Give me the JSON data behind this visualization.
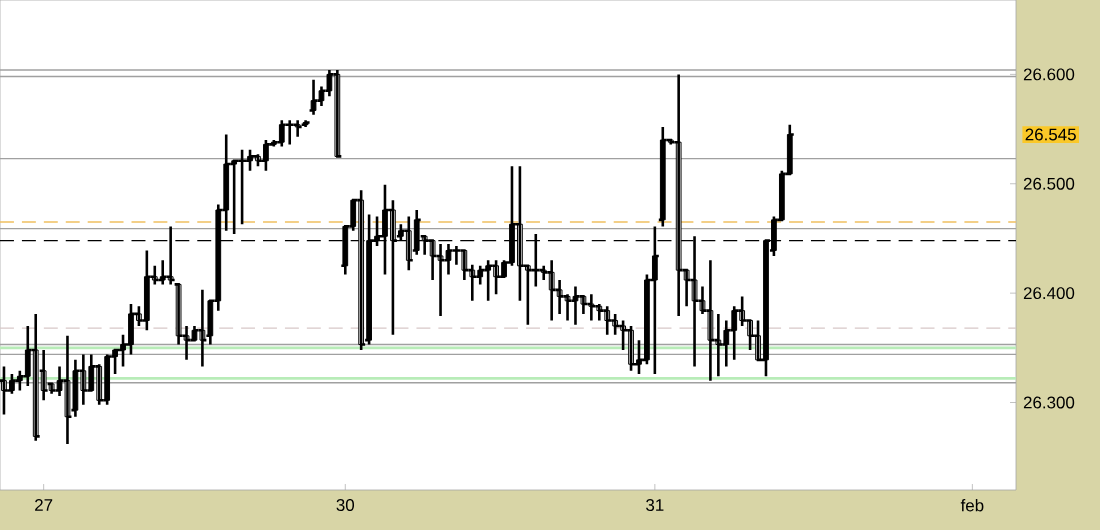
{
  "chart_data": {
    "type": "candlestick",
    "categories": [
      null,
      null,
      null,
      null,
      null,
      "27",
      null,
      null,
      null,
      null,
      null,
      null,
      null,
      null,
      null,
      null,
      null,
      null,
      null,
      null,
      null,
      null,
      null,
      null,
      null,
      null,
      null,
      null,
      null,
      null,
      null,
      null,
      null,
      null,
      null,
      null,
      null,
      null,
      null,
      null,
      null,
      null,
      null,
      "30",
      null,
      null,
      null,
      null,
      null,
      null,
      null,
      null,
      null,
      null,
      null,
      null,
      null,
      null,
      null,
      null,
      null,
      null,
      null,
      null,
      null,
      null,
      null,
      null,
      null,
      null,
      null,
      null,
      null,
      null,
      null,
      null,
      null,
      null,
      null,
      null,
      null,
      null,
      "31",
      null,
      null,
      null,
      null,
      null,
      null,
      null,
      null,
      null,
      null,
      null,
      null,
      null,
      null,
      null,
      null,
      null,
      null,
      null,
      null,
      null,
      null,
      null,
      null,
      null,
      null,
      null,
      null,
      null,
      null,
      null,
      null,
      null,
      null,
      null,
      null,
      null,
      null,
      null,
      "feb",
      null,
      null,
      null,
      null,
      null
    ],
    "ohlc": [
      [
        26.32,
        26.333,
        26.289,
        26.311
      ],
      [
        26.311,
        26.326,
        26.308,
        26.32
      ],
      [
        26.32,
        26.329,
        26.311,
        26.324
      ],
      [
        26.324,
        26.37,
        26.315,
        26.348
      ],
      [
        26.348,
        26.381,
        26.265,
        26.269
      ],
      [
        26.329,
        26.348,
        26.302,
        26.311
      ],
      [
        26.317,
        26.317,
        26.308,
        26.311
      ],
      [
        26.311,
        26.333,
        26.306,
        26.32
      ],
      [
        26.32,
        26.361,
        26.262,
        26.287
      ],
      [
        26.293,
        26.339,
        26.287,
        26.329
      ],
      [
        26.329,
        26.344,
        26.298,
        26.311
      ],
      [
        26.311,
        26.344,
        26.311,
        26.333
      ],
      [
        26.333,
        26.335,
        26.298,
        26.302
      ],
      [
        26.302,
        26.344,
        26.298,
        26.342
      ],
      [
        26.342,
        26.348,
        26.326,
        26.348
      ],
      [
        26.348,
        26.362,
        26.333,
        26.353
      ],
      [
        26.353,
        26.39,
        26.344,
        26.381
      ],
      [
        26.381,
        26.388,
        26.37,
        26.375
      ],
      [
        26.375,
        26.439,
        26.366,
        26.415
      ],
      [
        26.415,
        26.425,
        26.408,
        26.412
      ],
      [
        26.412,
        26.43,
        26.408,
        26.415
      ],
      [
        26.415,
        26.461,
        26.408,
        26.412
      ],
      [
        26.408,
        26.408,
        26.353,
        26.361
      ],
      [
        26.361,
        26.37,
        26.339,
        26.357
      ],
      [
        26.357,
        26.37,
        26.357,
        26.366
      ],
      [
        26.366,
        26.403,
        26.333,
        26.357
      ],
      [
        26.361,
        26.393,
        26.353,
        26.393
      ],
      [
        26.393,
        26.481,
        26.384,
        26.476
      ],
      [
        26.476,
        26.545,
        26.457,
        26.518
      ],
      [
        26.518,
        26.521,
        26.454,
        26.521
      ],
      [
        26.521,
        26.531,
        26.463,
        26.521
      ],
      [
        26.521,
        26.531,
        26.512,
        26.525
      ],
      [
        26.525,
        26.527,
        26.516,
        26.521
      ],
      [
        26.521,
        26.54,
        26.512,
        26.536
      ],
      [
        26.536,
        26.54,
        26.534,
        26.538
      ],
      [
        26.538,
        26.558,
        26.534,
        26.554
      ],
      [
        26.554,
        26.558,
        26.536,
        26.554
      ],
      [
        26.554,
        26.558,
        26.543,
        26.552
      ],
      [
        26.554,
        26.558,
        26.552,
        26.556
      ],
      [
        26.567,
        26.595,
        26.563,
        26.576
      ],
      [
        26.576,
        26.589,
        26.571,
        26.585
      ],
      [
        26.585,
        26.604,
        26.58,
        26.6
      ],
      [
        26.6,
        26.604,
        26.525,
        26.525
      ],
      [
        26.425,
        26.461,
        26.417,
        26.461
      ],
      [
        26.461,
        26.485,
        26.457,
        26.485
      ],
      [
        26.485,
        26.494,
        26.348,
        26.353
      ],
      [
        26.357,
        26.472,
        26.353,
        26.448
      ],
      [
        26.448,
        26.47,
        26.443,
        26.452
      ],
      [
        26.452,
        26.499,
        26.417,
        26.476
      ],
      [
        26.476,
        26.485,
        26.362,
        26.448
      ],
      [
        26.452,
        26.463,
        26.448,
        26.457
      ],
      [
        26.457,
        26.47,
        26.421,
        26.43
      ],
      [
        26.439,
        26.476,
        26.435,
        26.467
      ],
      [
        26.452,
        26.452,
        26.435,
        26.448
      ],
      [
        26.448,
        26.448,
        26.412,
        26.434
      ],
      [
        26.434,
        26.445,
        26.379,
        26.43
      ],
      [
        26.43,
        26.445,
        26.417,
        26.439
      ],
      [
        26.439,
        26.443,
        26.426,
        26.439
      ],
      [
        26.439,
        26.439,
        26.412,
        26.421
      ],
      [
        26.421,
        26.426,
        26.393,
        26.415
      ],
      [
        26.415,
        26.425,
        26.408,
        26.421
      ],
      [
        26.421,
        26.43,
        26.393,
        26.425
      ],
      [
        26.425,
        26.43,
        26.399,
        26.415
      ],
      [
        26.415,
        26.43,
        26.415,
        26.428
      ],
      [
        26.428,
        26.516,
        26.425,
        26.463
      ],
      [
        26.463,
        26.516,
        26.393,
        26.425
      ],
      [
        26.425,
        26.426,
        26.371,
        26.421
      ],
      [
        26.421,
        26.454,
        26.406,
        26.421
      ],
      [
        26.421,
        26.425,
        26.412,
        26.419
      ],
      [
        26.419,
        26.43,
        26.375,
        26.403
      ],
      [
        26.403,
        26.412,
        26.381,
        26.397
      ],
      [
        26.397,
        26.399,
        26.375,
        26.393
      ],
      [
        26.393,
        26.406,
        26.371,
        26.397
      ],
      [
        26.397,
        26.397,
        26.381,
        26.39
      ],
      [
        26.39,
        26.399,
        26.375,
        26.388
      ],
      [
        26.388,
        26.39,
        26.375,
        26.384
      ],
      [
        26.384,
        26.388,
        26.362,
        26.375
      ],
      [
        26.375,
        26.381,
        26.362,
        26.37
      ],
      [
        26.37,
        26.375,
        26.348,
        26.366
      ],
      [
        26.366,
        26.37,
        26.329,
        26.335
      ],
      [
        26.335,
        26.357,
        26.326,
        26.339
      ],
      [
        26.339,
        26.417,
        26.335,
        26.412
      ],
      [
        26.412,
        26.461,
        26.326,
        26.434
      ],
      [
        26.467,
        26.552,
        26.461,
        26.54
      ],
      [
        26.54,
        26.54,
        26.536,
        26.538
      ],
      [
        26.538,
        26.6,
        26.379,
        26.421
      ],
      [
        26.421,
        26.421,
        26.388,
        26.412
      ],
      [
        26.412,
        26.452,
        26.333,
        26.393
      ],
      [
        26.393,
        26.406,
        26.381,
        26.384
      ],
      [
        26.384,
        26.43,
        26.32,
        26.357
      ],
      [
        26.357,
        26.381,
        26.324,
        26.353
      ],
      [
        26.353,
        26.375,
        26.333,
        26.366
      ],
      [
        26.366,
        26.388,
        26.339,
        26.384
      ],
      [
        26.384,
        26.397,
        26.37,
        26.375
      ],
      [
        26.375,
        26.375,
        26.348,
        26.361
      ],
      [
        26.361,
        26.375,
        26.339,
        26.339
      ],
      [
        26.339,
        26.448,
        26.324,
        26.448
      ],
      [
        26.439,
        26.47,
        26.434,
        26.467
      ],
      [
        26.467,
        26.512,
        26.467,
        26.509
      ],
      [
        26.509,
        26.554,
        26.509,
        26.545
      ],
      null,
      null,
      null,
      null,
      null,
      null,
      null,
      null,
      null,
      null,
      null,
      null,
      null,
      null,
      null,
      null,
      null,
      null,
      null,
      null,
      null,
      null,
      null,
      null,
      null,
      null,
      null,
      null
    ],
    "color": "#000000",
    "ylim": [
      26.22,
      26.668
    ],
    "yticks": [
      {
        "value": 26.3,
        "label": "26.300"
      },
      {
        "value": 26.4,
        "label": "26.400"
      },
      {
        "value": 26.5,
        "label": "26.500"
      },
      {
        "value": 26.6,
        "label": "26.600"
      }
    ],
    "ref_lines": [
      {
        "axis": "y",
        "value": 26.604,
        "color": "#a0a0a0",
        "line_style": "solid"
      },
      {
        "axis": "y",
        "value": 26.598,
        "color": "#a0a0a0",
        "line_style": "solid"
      },
      {
        "axis": "y",
        "value": 26.523,
        "color": "#a0a0a0",
        "line_style": "solid"
      },
      {
        "axis": "y",
        "value": 26.465,
        "color": "#f0c060",
        "line_style": "dashed"
      },
      {
        "axis": "y",
        "value": 26.459,
        "color": "#a0a0a0",
        "line_style": "solid"
      },
      {
        "axis": "y",
        "value": 26.448,
        "color": "#000000",
        "line_style": "dashed"
      },
      {
        "axis": "y",
        "value": 26.368,
        "color": "#d8c8c8",
        "line_style": "dashed"
      },
      {
        "axis": "y",
        "value": 26.353,
        "color": "#a0a0a0",
        "line_style": "solid"
      },
      {
        "axis": "y",
        "value": 26.35,
        "color": "#b8ecb8",
        "line_style": "solid"
      },
      {
        "axis": "y",
        "value": 26.344,
        "color": "#a0a0a0",
        "line_style": "solid"
      },
      {
        "axis": "y",
        "value": 26.322,
        "color": "#b8ecb8",
        "line_style": "solid"
      },
      {
        "axis": "y",
        "value": 26.318,
        "color": "#a0a0a0",
        "line_style": "solid"
      }
    ],
    "annotations": [
      "26.545"
    ]
  }
}
